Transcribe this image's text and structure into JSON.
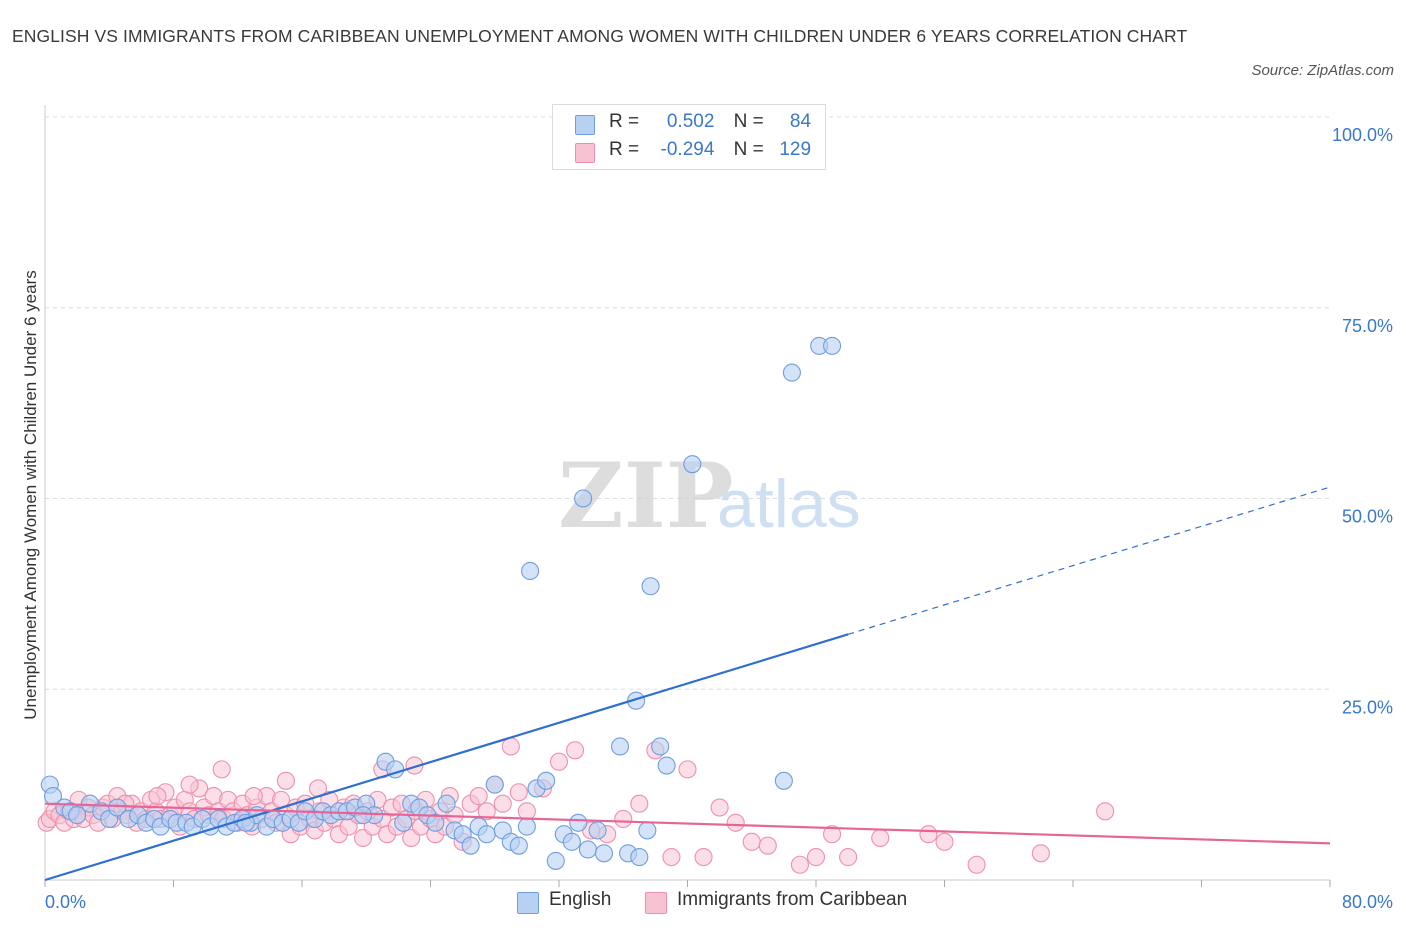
{
  "header": {
    "title": "ENGLISH VS IMMIGRANTS FROM CARIBBEAN UNEMPLOYMENT AMONG WOMEN WITH CHILDREN UNDER 6 YEARS CORRELATION CHART",
    "source": "Source: ZipAtlas.com"
  },
  "watermark": {
    "zip": "ZIP",
    "atlas": "atlas"
  },
  "legend": {
    "rows": [
      {
        "r_label": "R =",
        "r_value": "0.502",
        "n_label": "N =",
        "n_value": "84"
      },
      {
        "r_label": "R =",
        "r_value": "-0.294",
        "n_label": "N =",
        "n_value": "129"
      }
    ]
  },
  "bottom_legend": {
    "english": "English",
    "caribbean": "Immigrants from Caribbean"
  },
  "colors": {
    "english_fill": "#b8d0f2",
    "english_stroke": "#6f9ee0",
    "english_line": "#2f6fcf",
    "caribbean_fill": "#f7c3d3",
    "caribbean_stroke": "#ee90ac",
    "caribbean_line": "#e76596",
    "tick_label": "#3a78c8",
    "grid": "#dddddd"
  },
  "chart_data": {
    "type": "scatter",
    "title": "ENGLISH VS IMMIGRANTS FROM CARIBBEAN UNEMPLOYMENT AMONG WOMEN WITH CHILDREN UNDER 6 YEARS CORRELATION CHART",
    "xlabel": "",
    "ylabel": "Unemployment Among Women with Children Under 6 years",
    "xlim": [
      0,
      80
    ],
    "ylim": [
      0,
      100
    ],
    "x_tick_labels": [
      "0.0%",
      "80.0%"
    ],
    "y_ticks": [
      25,
      50,
      75,
      100
    ],
    "y_tick_labels": [
      "25.0%",
      "50.0%",
      "75.0%",
      "100.0%"
    ],
    "grid": true,
    "series": [
      {
        "name": "English",
        "R": 0.502,
        "N": 84,
        "trend": {
          "x0": 0,
          "y0": 0.0,
          "x1": 50,
          "y1": 32.2,
          "dash_to_x": 80,
          "dash_to_y": 51.5
        },
        "points": [
          [
            0.3,
            12.5
          ],
          [
            0.5,
            11
          ],
          [
            1.2,
            9.5
          ],
          [
            1.6,
            9
          ],
          [
            2,
            8.5
          ],
          [
            2.8,
            10
          ],
          [
            3.5,
            9
          ],
          [
            4,
            8
          ],
          [
            4.5,
            9.5
          ],
          [
            5.2,
            8
          ],
          [
            5.8,
            8.5
          ],
          [
            6.3,
            7.5
          ],
          [
            6.8,
            8
          ],
          [
            7.2,
            7
          ],
          [
            7.8,
            8
          ],
          [
            8.2,
            7.5
          ],
          [
            8.8,
            7.5
          ],
          [
            9.2,
            7
          ],
          [
            9.8,
            8
          ],
          [
            10.3,
            7
          ],
          [
            10.8,
            8
          ],
          [
            11.3,
            7
          ],
          [
            11.8,
            7.5
          ],
          [
            12.3,
            8
          ],
          [
            12.8,
            7.5
          ],
          [
            13.2,
            8.5
          ],
          [
            13.8,
            7
          ],
          [
            14.2,
            8
          ],
          [
            14.8,
            7.5
          ],
          [
            15.3,
            8
          ],
          [
            15.8,
            7.5
          ],
          [
            16.2,
            9
          ],
          [
            16.8,
            8
          ],
          [
            17.3,
            9
          ],
          [
            17.8,
            8.5
          ],
          [
            18.3,
            9
          ],
          [
            18.8,
            9
          ],
          [
            19.3,
            9.5
          ],
          [
            20,
            10
          ],
          [
            20.5,
            8.5
          ],
          [
            21.2,
            15.5
          ],
          [
            21.8,
            14.5
          ],
          [
            22.3,
            7.5
          ],
          [
            22.8,
            10
          ],
          [
            23.3,
            9.5
          ],
          [
            23.8,
            8.5
          ],
          [
            24.3,
            7.5
          ],
          [
            25,
            10
          ],
          [
            25.5,
            6.5
          ],
          [
            26,
            6
          ],
          [
            26.5,
            4.5
          ],
          [
            27,
            7
          ],
          [
            27.5,
            6
          ],
          [
            28,
            12.5
          ],
          [
            28.5,
            6.5
          ],
          [
            29,
            5
          ],
          [
            29.5,
            4.5
          ],
          [
            30,
            7
          ],
          [
            30.6,
            12
          ],
          [
            31.2,
            13
          ],
          [
            31.8,
            2.5
          ],
          [
            32.3,
            6
          ],
          [
            32.8,
            5
          ],
          [
            33.2,
            7.5
          ],
          [
            33.8,
            4
          ],
          [
            34.4,
            6.5
          ],
          [
            34.8,
            3.5
          ],
          [
            35.8,
            17.5
          ],
          [
            36.3,
            3.5
          ],
          [
            37,
            3
          ],
          [
            37.5,
            6.5
          ],
          [
            38.3,
            17.5
          ],
          [
            38.7,
            15
          ],
          [
            30.2,
            40.5
          ],
          [
            33.5,
            50
          ],
          [
            37.7,
            38.5
          ],
          [
            36.8,
            23.5
          ],
          [
            40.3,
            54.5
          ],
          [
            46,
            13
          ],
          [
            46.5,
            66.5
          ],
          [
            48.2,
            70
          ],
          [
            49,
            70
          ],
          [
            12.5,
            7.5
          ],
          [
            19.8,
            8.5
          ]
        ]
      },
      {
        "name": "Immigrants from Caribbean",
        "R": -0.294,
        "N": 129,
        "trend": {
          "x0": 0,
          "y0": 10.0,
          "x1": 80,
          "y1": 4.8
        },
        "points": [
          [
            0.1,
            7.5
          ],
          [
            0.3,
            8
          ],
          [
            0.6,
            9
          ],
          [
            0.9,
            8.5
          ],
          [
            1.2,
            7.5
          ],
          [
            1.5,
            9
          ],
          [
            1.8,
            8
          ],
          [
            2.1,
            10.5
          ],
          [
            2.4,
            8
          ],
          [
            2.7,
            9.5
          ],
          [
            3,
            8.5
          ],
          [
            3.3,
            7.5
          ],
          [
            3.6,
            9.5
          ],
          [
            3.9,
            10
          ],
          [
            4.2,
            8
          ],
          [
            4.5,
            11
          ],
          [
            4.8,
            9
          ],
          [
            5.1,
            8.5
          ],
          [
            5.4,
            10
          ],
          [
            5.7,
            7.5
          ],
          [
            6,
            9
          ],
          [
            6.3,
            8
          ],
          [
            6.6,
            10.5
          ],
          [
            6.9,
            9
          ],
          [
            7.2,
            8
          ],
          [
            7.5,
            11.5
          ],
          [
            7.8,
            8.5
          ],
          [
            8.1,
            9.5
          ],
          [
            8.4,
            7
          ],
          [
            8.7,
            10.5
          ],
          [
            9,
            9
          ],
          [
            9.3,
            8
          ],
          [
            9.6,
            12
          ],
          [
            9.9,
            9.5
          ],
          [
            10.2,
            8.5
          ],
          [
            10.5,
            11
          ],
          [
            10.8,
            9
          ],
          [
            11.1,
            8
          ],
          [
            11.4,
            10.5
          ],
          [
            11.7,
            9
          ],
          [
            12,
            7.5
          ],
          [
            12.3,
            10
          ],
          [
            12.6,
            8.5
          ],
          [
            12.9,
            7
          ],
          [
            13.2,
            9.5
          ],
          [
            13.5,
            8
          ],
          [
            13.8,
            11
          ],
          [
            14.1,
            9
          ],
          [
            14.4,
            7.5
          ],
          [
            14.7,
            10.5
          ],
          [
            15,
            8.5
          ],
          [
            15.3,
            6
          ],
          [
            15.6,
            9.5
          ],
          [
            15.9,
            7
          ],
          [
            16.2,
            10
          ],
          [
            16.5,
            8
          ],
          [
            16.8,
            6.5
          ],
          [
            17.1,
            9
          ],
          [
            17.4,
            7.5
          ],
          [
            17.7,
            10.5
          ],
          [
            18,
            8
          ],
          [
            18.3,
            6
          ],
          [
            18.6,
            9.5
          ],
          [
            18.9,
            7
          ],
          [
            19.2,
            10
          ],
          [
            19.5,
            8.5
          ],
          [
            19.8,
            5.5
          ],
          [
            20.1,
            9
          ],
          [
            20.4,
            7
          ],
          [
            20.7,
            10.5
          ],
          [
            21,
            8
          ],
          [
            21.3,
            6
          ],
          [
            21.6,
            9.5
          ],
          [
            21.9,
            7
          ],
          [
            22.2,
            10
          ],
          [
            22.5,
            8
          ],
          [
            22.8,
            5.5
          ],
          [
            23.1,
            9
          ],
          [
            23.4,
            7
          ],
          [
            23.7,
            10.5
          ],
          [
            24,
            8
          ],
          [
            24.3,
            6
          ],
          [
            24.6,
            9
          ],
          [
            24.9,
            7
          ],
          [
            25.2,
            11
          ],
          [
            25.5,
            8.5
          ],
          [
            26,
            5
          ],
          [
            26.5,
            10
          ],
          [
            27,
            11
          ],
          [
            27.5,
            9
          ],
          [
            28,
            12.5
          ],
          [
            28.5,
            10
          ],
          [
            29,
            17.5
          ],
          [
            29.5,
            11.5
          ],
          [
            30,
            9
          ],
          [
            31,
            12
          ],
          [
            32,
            15.5
          ],
          [
            33,
            17
          ],
          [
            34,
            6.5
          ],
          [
            35,
            6
          ],
          [
            36,
            8
          ],
          [
            37,
            10
          ],
          [
            38,
            17
          ],
          [
            39,
            3
          ],
          [
            40,
            14.5
          ],
          [
            41,
            3
          ],
          [
            42,
            9.5
          ],
          [
            43,
            7.5
          ],
          [
            44,
            5
          ],
          [
            45,
            4.5
          ],
          [
            47,
            2
          ],
          [
            48,
            3
          ],
          [
            49,
            6
          ],
          [
            50,
            3
          ],
          [
            52,
            5.5
          ],
          [
            55,
            6
          ],
          [
            56,
            5
          ],
          [
            58,
            2
          ],
          [
            62,
            3.5
          ],
          [
            66,
            9
          ],
          [
            13,
            11
          ],
          [
            15,
            13
          ],
          [
            17,
            12
          ],
          [
            21,
            14.5
          ],
          [
            23,
            15
          ],
          [
            11,
            14.5
          ],
          [
            9,
            12.5
          ],
          [
            7,
            11
          ],
          [
            5,
            10
          ]
        ]
      }
    ]
  }
}
